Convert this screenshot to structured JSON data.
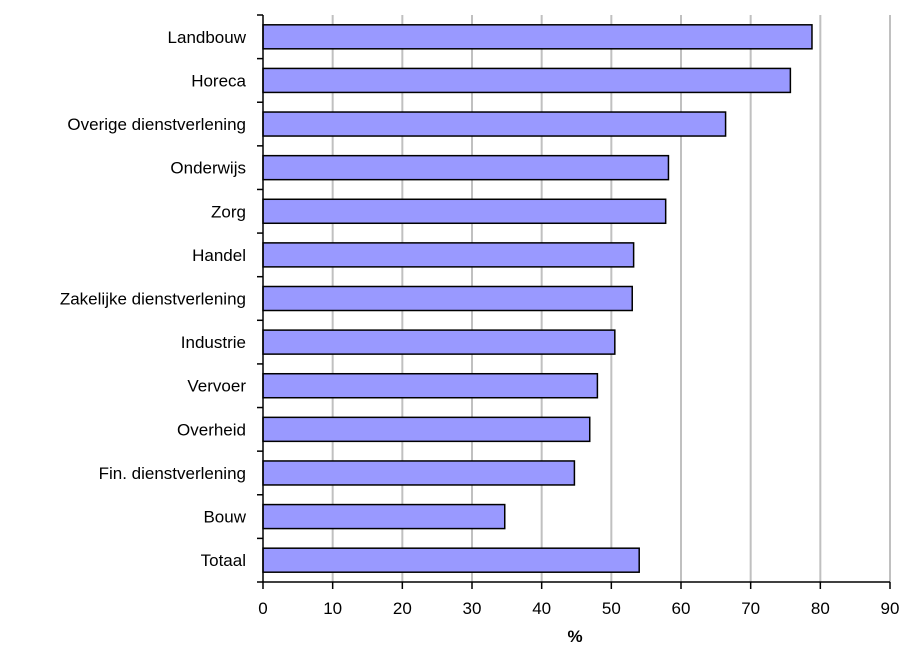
{
  "chart_data": {
    "type": "bar",
    "orientation": "horizontal",
    "categories": [
      "Landbouw",
      "Horeca",
      "Overige dienstverlening",
      "Onderwijs",
      "Zorg",
      "Handel",
      "Zakelijke dienstverlening",
      "Industrie",
      "Vervoer",
      "Overheid",
      "Fin. dienstverlening",
      "Bouw",
      "Totaal"
    ],
    "values": [
      78.8,
      75.7,
      66.4,
      58.2,
      57.8,
      53.2,
      53.0,
      50.5,
      48.0,
      46.9,
      44.7,
      34.7,
      54.0
    ],
    "xlabel": "%",
    "ylabel": "",
    "xlim": [
      0,
      90
    ],
    "xticks": [
      "0",
      "10",
      "20",
      "30",
      "40",
      "50",
      "60",
      "70",
      "80",
      "90"
    ],
    "grid": "vertical",
    "legend": "none",
    "colors": {
      "bar_fill": "#9999ff",
      "bar_stroke": "#000000",
      "grid": "#c0c0c0",
      "axis": "#000000"
    }
  }
}
